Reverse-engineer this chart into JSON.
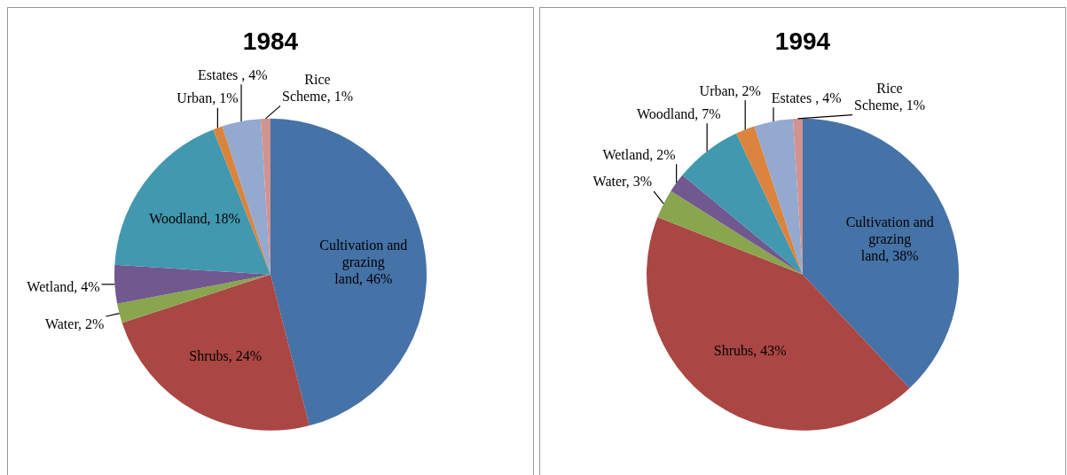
{
  "chart_data": [
    {
      "type": "pie",
      "title": "1984",
      "categories": [
        "Cultivation and grazing land",
        "Shrubs",
        "Water",
        "Wetland",
        "Woodland",
        "Urban",
        "Estates ",
        "Rice Scheme"
      ],
      "values": [
        46,
        24,
        2,
        4,
        18,
        1,
        4,
        1
      ],
      "value_labels": [
        "46%",
        "24%",
        "2%",
        "4%",
        "18%",
        "1%",
        "4%",
        "1%"
      ],
      "colors": [
        "#4572a7",
        "#aa4643",
        "#89a54e",
        "#71588f",
        "#4198af",
        "#db843d",
        "#93a9cf",
        "#d19392"
      ],
      "legend": false
    },
    {
      "type": "pie",
      "title": "1994",
      "categories": [
        "Cultivation and grazing land",
        "Shrubs",
        "Water",
        "Wetland",
        "Woodland",
        "Urban",
        "Estates ",
        "Rice Scheme"
      ],
      "values": [
        38,
        43,
        3,
        2,
        7,
        2,
        4,
        1
      ],
      "value_labels": [
        "38%",
        "43%",
        "3%",
        "2%",
        "7%",
        "2%",
        "4%",
        "1%"
      ],
      "colors": [
        "#4572a7",
        "#aa4643",
        "#89a54e",
        "#71588f",
        "#4198af",
        "#db843d",
        "#93a9cf",
        "#d19392"
      ],
      "legend": false
    }
  ]
}
